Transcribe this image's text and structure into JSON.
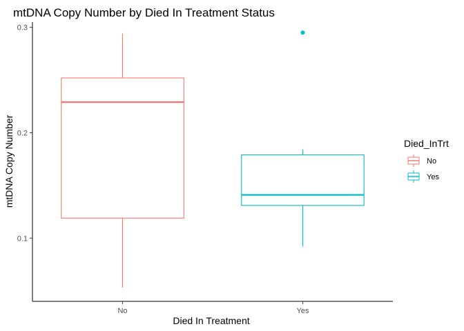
{
  "chart_data": {
    "type": "boxplot",
    "title": "mtDNA Copy Number by Died In Treatment Status",
    "xlabel": "Died In Treatment",
    "ylabel": "mtDNA Copy Number",
    "ylim": [
      0.04,
      0.305
    ],
    "yticks": [
      0.1,
      0.2,
      0.3
    ],
    "ytick_labels": [
      "0.1",
      "0.2",
      "0.3"
    ],
    "categories": [
      "No",
      "Yes"
    ],
    "legend": {
      "title": "Died_InTrt",
      "placement": "right",
      "entries": [
        "No",
        "Yes"
      ]
    },
    "colors": {
      "No": "#F8766D",
      "Yes": "#00BFC4"
    },
    "grid": false,
    "boxes": [
      {
        "category": "No",
        "min": 0.053,
        "q1": 0.119,
        "median": 0.229,
        "q3": 0.252,
        "max": 0.294,
        "outliers": []
      },
      {
        "category": "Yes",
        "min": 0.092,
        "q1": 0.131,
        "median": 0.141,
        "q3": 0.179,
        "max": 0.184,
        "outliers": [
          0.295
        ]
      }
    ]
  }
}
